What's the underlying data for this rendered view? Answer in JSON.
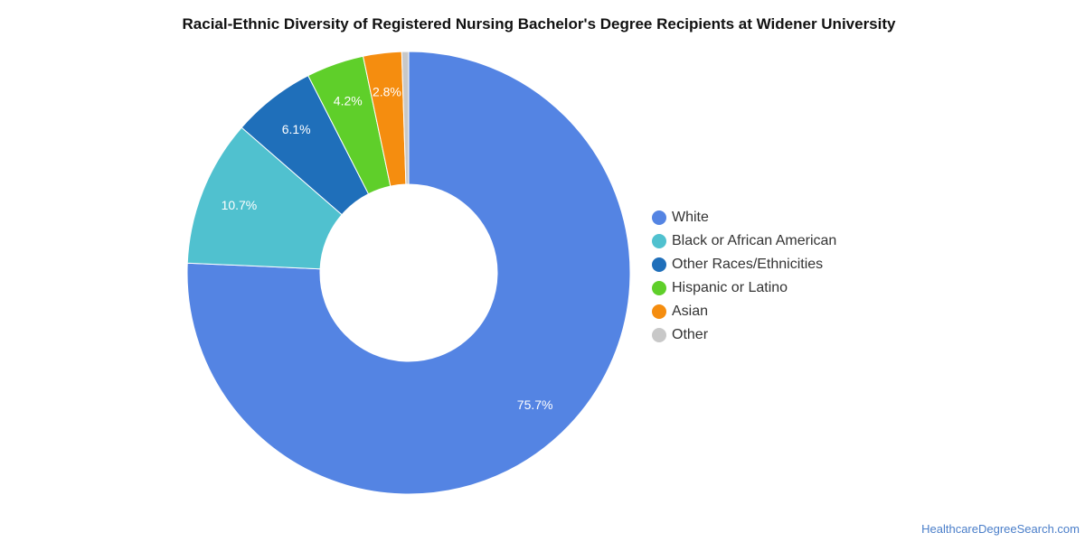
{
  "chart_data": {
    "type": "pie",
    "variant": "donut",
    "title": "Racial-Ethnic Diversity of Registered Nursing Bachelor's Degree Recipients at Widener University",
    "series": [
      {
        "name": "White",
        "value": 75.7,
        "label": "75.7%",
        "color": "#5484e3"
      },
      {
        "name": "Black or African American",
        "value": 10.7,
        "label": "10.7%",
        "color": "#50c1cf"
      },
      {
        "name": "Other Races/Ethnicities",
        "value": 6.1,
        "label": "6.1%",
        "color": "#1f6fba"
      },
      {
        "name": "Hispanic or Latino",
        "value": 4.2,
        "label": "4.2%",
        "color": "#5fcf2a"
      },
      {
        "name": "Asian",
        "value": 2.8,
        "label": "2.8%",
        "color": "#f58d0f"
      },
      {
        "name": "Other",
        "value": 0.5,
        "label": "",
        "color": "#c8c8c8"
      }
    ],
    "legend_position": "right"
  },
  "source": "HealthcareDegreeSearch.com"
}
